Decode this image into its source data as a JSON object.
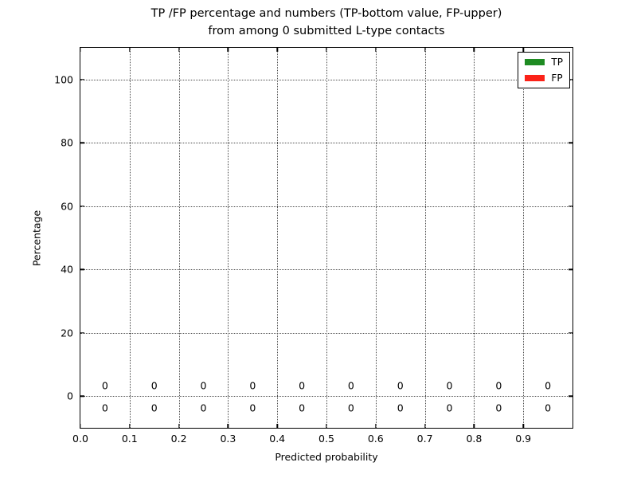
{
  "chart_data": {
    "type": "bar",
    "title_line1": "TP /FP percentage and numbers (TP-bottom value, FP-upper)",
    "title_line2": "from among 0 submitted L-type contacts",
    "xlabel": "Predicted probability",
    "ylabel": "Percentage",
    "xlim": [
      0.0,
      1.0
    ],
    "ylim": [
      -10,
      110
    ],
    "grid": "dotted",
    "grid_color": "#4d4d4d",
    "xticks": [
      0.0,
      0.1,
      0.2,
      0.3,
      0.4,
      0.5,
      0.6,
      0.7,
      0.8,
      0.9
    ],
    "xtick_labels": [
      "0.0",
      "0.1",
      "0.2",
      "0.3",
      "0.4",
      "0.5",
      "0.6",
      "0.7",
      "0.8",
      "0.9"
    ],
    "yticks": [
      0,
      20,
      40,
      60,
      80,
      100
    ],
    "ytick_labels": [
      "0",
      "20",
      "40",
      "60",
      "80",
      "100"
    ],
    "bin_centers": [
      0.05,
      0.15,
      0.25,
      0.35,
      0.45,
      0.55,
      0.65,
      0.75,
      0.85,
      0.95
    ],
    "series": [
      {
        "name": "TP",
        "color": "#1e8b22",
        "values": [
          0,
          0,
          0,
          0,
          0,
          0,
          0,
          0,
          0,
          0
        ]
      },
      {
        "name": "FP",
        "color": "#fb2218",
        "values": [
          0,
          0,
          0,
          0,
          0,
          0,
          0,
          0,
          0,
          0
        ]
      }
    ],
    "value_labels": {
      "x": [
        0.05,
        0.15,
        0.25,
        0.35,
        0.45,
        0.55,
        0.65,
        0.75,
        0.85,
        0.95
      ],
      "fp_upper": {
        "y": 3.3,
        "texts": [
          "0",
          "0",
          "0",
          "0",
          "0",
          "0",
          "0",
          "0",
          "0",
          "0"
        ]
      },
      "tp_bottom": {
        "y": -3.7,
        "texts": [
          "0",
          "0",
          "0",
          "0",
          "0",
          "0",
          "0",
          "0",
          "0",
          "0"
        ]
      }
    },
    "legend": {
      "position": "upper-right",
      "entries": [
        {
          "label": "TP",
          "color": "#1e8b22"
        },
        {
          "label": "FP",
          "color": "#fb2218"
        }
      ]
    }
  }
}
